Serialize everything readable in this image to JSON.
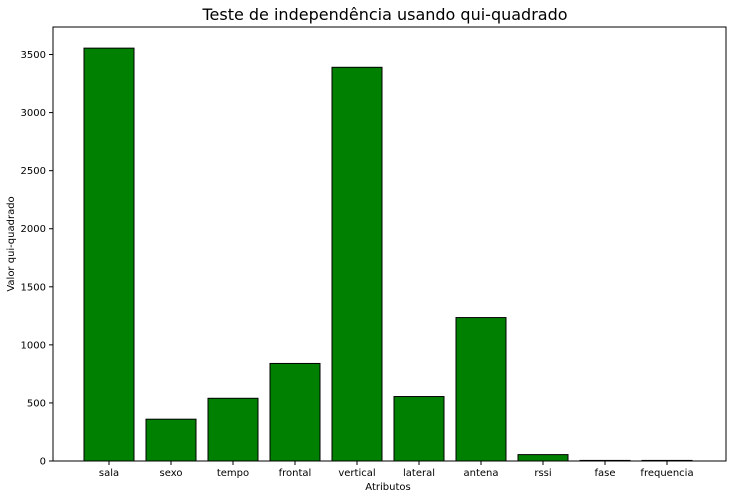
{
  "chart_data": {
    "type": "bar",
    "title": "Teste de independência usando qui-quadrado",
    "xlabel": "Atributos",
    "ylabel": "Valor qui-quadrado",
    "categories": [
      "sala",
      "sexo",
      "tempo",
      "frontal",
      "vertical",
      "lateral",
      "antena",
      "rssi",
      "fase",
      "frequencia"
    ],
    "values": [
      3555,
      360,
      540,
      840,
      3390,
      555,
      1235,
      55,
      5,
      5
    ],
    "yticks": [
      0,
      500,
      1000,
      1500,
      2000,
      2500,
      3000,
      3500
    ],
    "ylim": [
      0,
      3737
    ],
    "grid": false,
    "legend": "none",
    "colors": {
      "bar_fill": "#008000",
      "bar_edge": "#000000"
    }
  }
}
